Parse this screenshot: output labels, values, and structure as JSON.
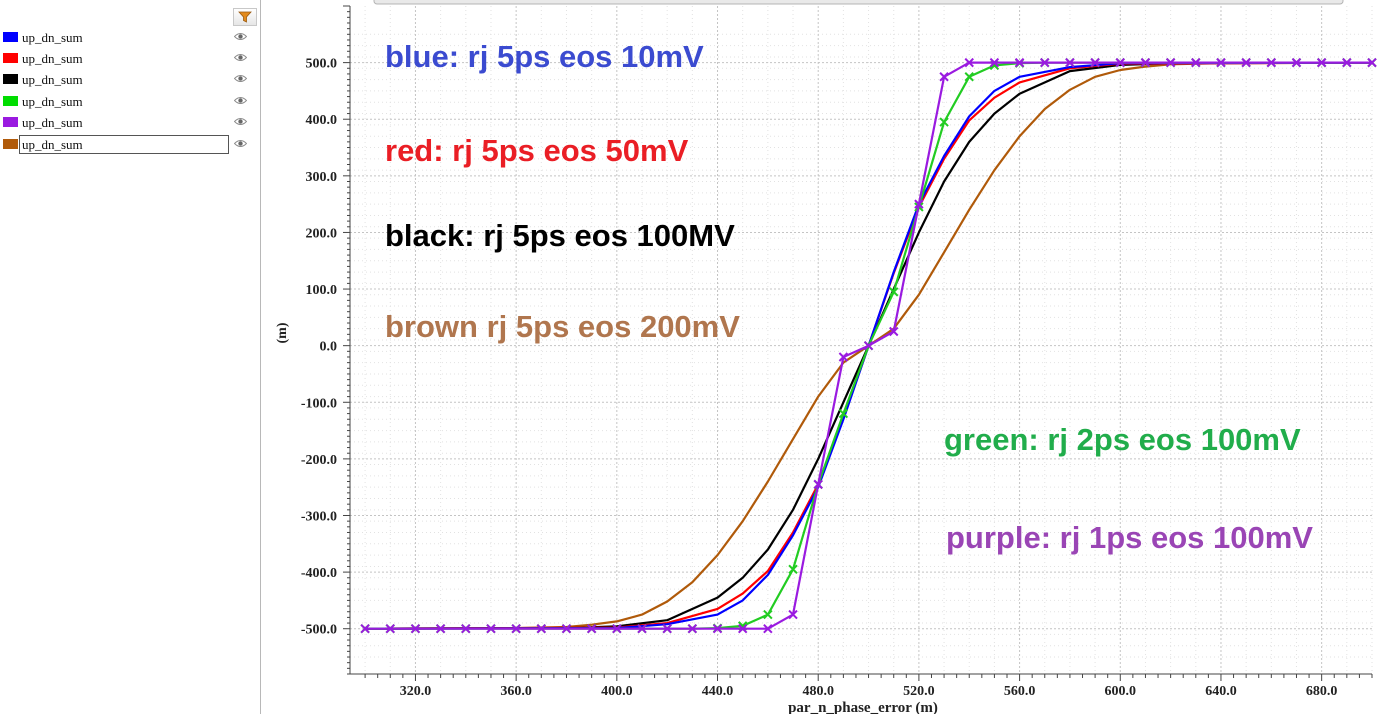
{
  "legend": {
    "items": [
      {
        "label": "up_dn_sum",
        "color": "#0000ff",
        "selected": false
      },
      {
        "label": "up_dn_sum",
        "color": "#ff0000",
        "selected": false
      },
      {
        "label": "up_dn_sum",
        "color": "#000000",
        "selected": false
      },
      {
        "label": "up_dn_sum",
        "color": "#00dd00",
        "selected": false
      },
      {
        "label": "up_dn_sum",
        "color": "#9a1ae0",
        "selected": false
      },
      {
        "label": "up_dn_sum",
        "color": "#b05a0a",
        "selected": true
      }
    ]
  },
  "chart_data": {
    "type": "line",
    "xlabel": "par_n_phase_error (m)",
    "ylabel": "(m)",
    "xlim": [
      294,
      700
    ],
    "ylim": [
      -580,
      600
    ],
    "x_ticks": [
      320,
      360,
      400,
      440,
      480,
      520,
      560,
      600,
      640,
      680
    ],
    "y_ticks": [
      500,
      400,
      300,
      200,
      100,
      0,
      -100,
      -200,
      -300,
      -400,
      -500
    ],
    "x_tick_labels": [
      "320.0",
      "360.0",
      "400.0",
      "440.0",
      "480.0",
      "520.0",
      "560.0",
      "600.0",
      "640.0",
      "680.0"
    ],
    "y_tick_labels": [
      "500.0",
      "400.0",
      "300.0",
      "200.0",
      "100.0",
      "0.0",
      "-100.0",
      "-200.0",
      "-300.0",
      "-400.0",
      "-500.0"
    ],
    "grid": true,
    "annotations": [
      {
        "text": "blue: rj 5ps eos 10mV",
        "color": "#3b4bd0"
      },
      {
        "text": "red: rj 5ps eos 50mV",
        "color": "#ea1e25"
      },
      {
        "text": "black: rj 5ps eos 100MV",
        "color": "#000000"
      },
      {
        "text": "brown rj 5ps eos 200mV",
        "color": "#b0764e"
      },
      {
        "text": "green: rj 2ps eos 100mV",
        "color": "#21ad4b"
      },
      {
        "text": "purple: rj 1ps eos 100mV",
        "color": "#9a45b5"
      }
    ],
    "series": [
      {
        "color": "#0000ff",
        "marker": "none",
        "x": [
          300,
          400,
          420,
          440,
          450,
          460,
          470,
          480,
          490,
          500,
          510,
          520,
          530,
          540,
          550,
          560,
          580,
          600,
          700
        ],
        "y": [
          -500,
          -499,
          -492,
          -475,
          -450,
          -405,
          -335,
          -250,
          -130,
          0,
          130,
          250,
          335,
          405,
          450,
          475,
          492,
          499,
          500
        ]
      },
      {
        "color": "#ff0000",
        "marker": "none",
        "x": [
          300,
          400,
          420,
          440,
          450,
          460,
          470,
          480,
          490,
          500,
          510,
          520,
          530,
          540,
          550,
          560,
          580,
          600,
          700
        ],
        "y": [
          -500,
          -498,
          -490,
          -465,
          -438,
          -398,
          -330,
          -245,
          -128,
          0,
          128,
          245,
          330,
          398,
          438,
          465,
          490,
          498,
          500
        ]
      },
      {
        "color": "#000000",
        "marker": "none",
        "x": [
          300,
          380,
          400,
          420,
          440,
          450,
          460,
          470,
          480,
          490,
          500,
          510,
          520,
          530,
          540,
          550,
          560,
          580,
          600,
          620,
          700
        ],
        "y": [
          -500,
          -499,
          -496,
          -485,
          -445,
          -410,
          -360,
          -290,
          -200,
          -100,
          0,
          100,
          200,
          290,
          360,
          410,
          445,
          485,
          496,
          499,
          500
        ]
      },
      {
        "color": "#22cc22",
        "marker": "x",
        "x": [
          300,
          310,
          320,
          330,
          340,
          350,
          360,
          370,
          380,
          390,
          400,
          410,
          420,
          430,
          440,
          450,
          460,
          470,
          480,
          490,
          500,
          510,
          520,
          530,
          540,
          550,
          560,
          570,
          580,
          590,
          600,
          610,
          620,
          630,
          640,
          650,
          660,
          670,
          680,
          690,
          700
        ],
        "y": [
          -500,
          -500,
          -500,
          -500,
          -500,
          -500,
          -500,
          -500,
          -500,
          -500,
          -500,
          -500,
          -500,
          -500,
          -499,
          -495,
          -475,
          -395,
          -245,
          -120,
          0,
          95,
          245,
          395,
          475,
          495,
          499,
          500,
          500,
          500,
          500,
          500,
          500,
          500,
          500,
          500,
          500,
          500,
          500,
          500,
          500
        ]
      },
      {
        "color": "#9a1ae0",
        "marker": "x",
        "x": [
          300,
          310,
          320,
          330,
          340,
          350,
          360,
          370,
          380,
          390,
          400,
          410,
          420,
          430,
          440,
          450,
          460,
          470,
          480,
          490,
          500,
          510,
          520,
          530,
          540,
          550,
          560,
          570,
          580,
          590,
          600,
          610,
          620,
          630,
          640,
          650,
          660,
          670,
          680,
          690,
          700
        ],
        "y": [
          -500,
          -500,
          -500,
          -500,
          -500,
          -500,
          -500,
          -500,
          -500,
          -500,
          -500,
          -500,
          -500,
          -500,
          -500,
          -500,
          -500,
          -475,
          -245,
          -20,
          0,
          25,
          250,
          475,
          500,
          500,
          500,
          500,
          500,
          500,
          500,
          500,
          500,
          500,
          500,
          500,
          500,
          500,
          500,
          500,
          500
        ]
      },
      {
        "color": "#b05a0a",
        "marker": "none",
        "x": [
          300,
          360,
          380,
          390,
          400,
          410,
          420,
          430,
          440,
          450,
          460,
          470,
          480,
          490,
          500,
          510,
          520,
          530,
          540,
          550,
          560,
          570,
          580,
          590,
          600,
          610,
          620,
          640,
          700
        ],
        "y": [
          -500,
          -499,
          -497,
          -493,
          -487,
          -475,
          -452,
          -418,
          -370,
          -310,
          -240,
          -165,
          -90,
          -30,
          0,
          30,
          90,
          165,
          240,
          310,
          370,
          418,
          452,
          475,
          487,
          493,
          497,
          499,
          500
        ]
      }
    ]
  }
}
